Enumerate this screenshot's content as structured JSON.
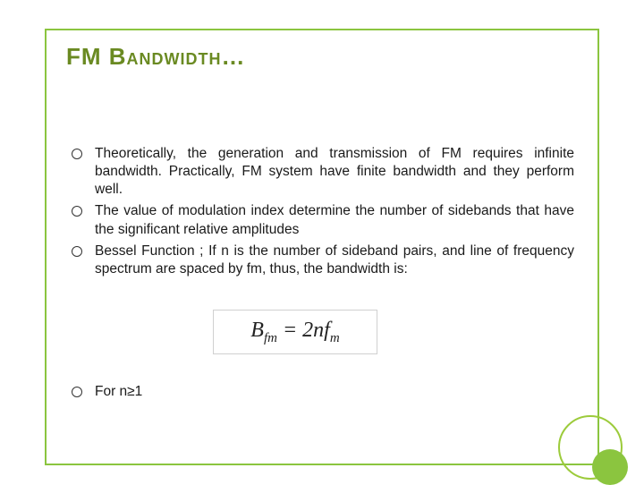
{
  "colors": {
    "border": "#8bc53f",
    "title": "#6a8a22",
    "body_text": "#1a1a1a",
    "background": "#ffffff",
    "formula_border": "#d0d0d0",
    "circle_ring": "#9ccb3b",
    "circle_fill": "#8bc53f"
  },
  "typography": {
    "title_fontsize": 26,
    "bullet_fontsize": 15.5,
    "bullet_lineheight": 1.3,
    "formula_fontsize": 24
  },
  "title": "FM Bandwidth…",
  "bullets_a": [
    "Theoretically, the generation and transmission of FM requires infinite bandwidth. Practically, FM system have finite bandwidth and they perform well.",
    "The value of modulation index determine the number of sidebands that have the significant relative amplitudes",
    "Bessel Function ; If n is the number of sideband pairs, and line of frequency spectrum are spaced by fm, thus, the bandwidth is:"
  ],
  "formula": {
    "lhs_base": "B",
    "lhs_sub": "fm",
    "eq": " = 2n",
    "rhs_base": "f",
    "rhs_sub": "m"
  },
  "bullets_b": [
    "For n≥1"
  ]
}
